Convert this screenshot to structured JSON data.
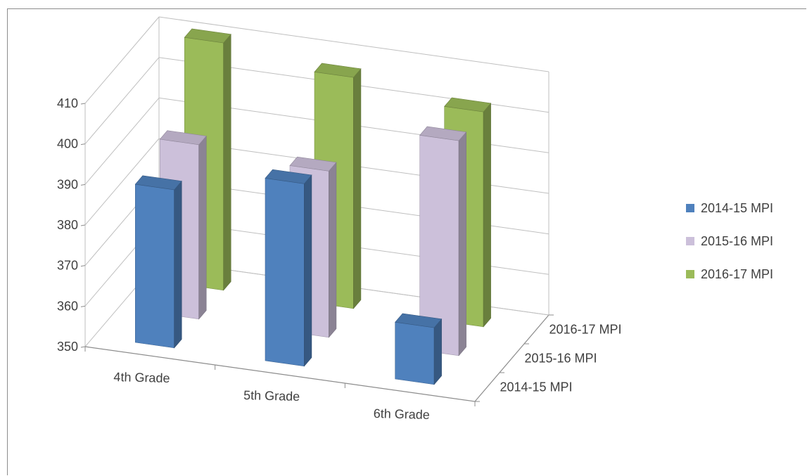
{
  "chart_data": {
    "type": "bar",
    "subtype": "3d-clustered-column",
    "title": "",
    "categories": [
      "4th Grade",
      "5th Grade",
      "6th Grade"
    ],
    "series": [
      {
        "name": "2014-15 MPI",
        "values": [
          389,
          395,
          364
        ],
        "color": "#4F81BD"
      },
      {
        "name": "2015-16 MPI",
        "values": [
          393,
          391,
          403
        ],
        "color": "#CCC0DA"
      },
      {
        "name": "2016-17 MPI",
        "values": [
          411,
          407,
          403
        ],
        "color": "#9BBB59"
      }
    ],
    "ylim": [
      350,
      410
    ],
    "yticks": [
      "350",
      "360",
      "370",
      "380",
      "390",
      "400",
      "410"
    ],
    "depth_labels": [
      "2014-15 MPI",
      "2015-16 MPI",
      "2016-17 MPI"
    ],
    "grid": true,
    "legend": "right"
  }
}
